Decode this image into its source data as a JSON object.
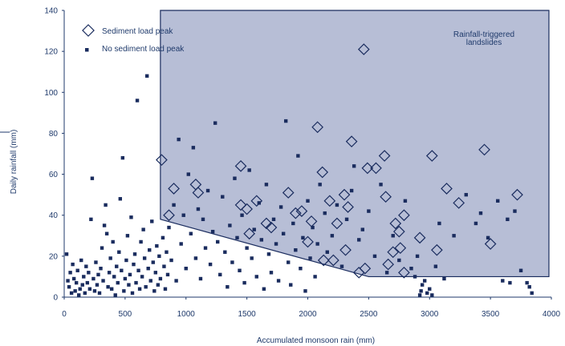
{
  "colors": {
    "axis": "#1f3a6b",
    "square": "#1a2c5e",
    "diamond": "#1a2c5e",
    "region_fill": "#b7bed6",
    "region_stroke": "#1a2c5e"
  },
  "chart_data": {
    "type": "scatter",
    "title": "",
    "xlabel": "Accumulated monsoon rain (mm)",
    "ylabel": "Daily rainfall (mm)",
    "xlim": [
      0,
      4000
    ],
    "ylim": [
      0,
      140
    ],
    "x_ticks": [
      "0",
      "500",
      "1000",
      "1500",
      "2000",
      "2500",
      "3000",
      "3500",
      "4000"
    ],
    "y_ticks": [
      "0",
      "20",
      "40",
      "60",
      "80",
      "100",
      "120",
      "140"
    ],
    "grid": false,
    "legend_position": "top-left",
    "region": {
      "label_lines": [
        "Rainfall-triggered",
        "landslides"
      ],
      "boundary": [
        [
          790,
          140
        ],
        [
          790,
          38
        ],
        [
          2500,
          10
        ],
        [
          3980,
          10
        ],
        [
          3980,
          140
        ]
      ]
    },
    "series": [
      {
        "name": "Sediment load peak",
        "marker": "diamond",
        "points": [
          [
            800,
            67
          ],
          [
            860,
            40
          ],
          [
            900,
            53
          ],
          [
            1080,
            55
          ],
          [
            1100,
            51
          ],
          [
            1450,
            64
          ],
          [
            1450,
            45
          ],
          [
            1500,
            43
          ],
          [
            1520,
            31
          ],
          [
            1580,
            47
          ],
          [
            1660,
            36
          ],
          [
            1700,
            34
          ],
          [
            1840,
            51
          ],
          [
            1900,
            41
          ],
          [
            1950,
            42
          ],
          [
            2000,
            27
          ],
          [
            2030,
            37
          ],
          [
            2080,
            83
          ],
          [
            2120,
            61
          ],
          [
            2130,
            18
          ],
          [
            2180,
            47
          ],
          [
            2210,
            18
          ],
          [
            2240,
            36
          ],
          [
            2300,
            50
          ],
          [
            2310,
            23
          ],
          [
            2330,
            44
          ],
          [
            2360,
            76
          ],
          [
            2420,
            12
          ],
          [
            2460,
            121
          ],
          [
            2470,
            14
          ],
          [
            2490,
            63
          ],
          [
            2560,
            63
          ],
          [
            2630,
            69
          ],
          [
            2640,
            49
          ],
          [
            2660,
            16
          ],
          [
            2700,
            22
          ],
          [
            2720,
            36
          ],
          [
            2750,
            32
          ],
          [
            2760,
            24
          ],
          [
            2790,
            40
          ],
          [
            2790,
            12
          ],
          [
            2920,
            29
          ],
          [
            3020,
            69
          ],
          [
            3060,
            23
          ],
          [
            3140,
            53
          ],
          [
            3240,
            46
          ],
          [
            3450,
            72
          ],
          [
            3500,
            26
          ],
          [
            3720,
            50
          ]
        ]
      },
      {
        "name": "No sediment load peak",
        "marker": "square",
        "points": [
          [
            20,
            21
          ],
          [
            30,
            8
          ],
          [
            40,
            5
          ],
          [
            50,
            12
          ],
          [
            60,
            2
          ],
          [
            70,
            16
          ],
          [
            80,
            9
          ],
          [
            90,
            3
          ],
          [
            100,
            7
          ],
          [
            110,
            13
          ],
          [
            120,
            1
          ],
          [
            130,
            4
          ],
          [
            140,
            18
          ],
          [
            150,
            6
          ],
          [
            160,
            10
          ],
          [
            170,
            2
          ],
          [
            180,
            15
          ],
          [
            190,
            7
          ],
          [
            200,
            12
          ],
          [
            210,
            4
          ],
          [
            220,
            38
          ],
          [
            230,
            58
          ],
          [
            240,
            9
          ],
          [
            250,
            3
          ],
          [
            260,
            17
          ],
          [
            270,
            6
          ],
          [
            280,
            11
          ],
          [
            290,
            2
          ],
          [
            300,
            14
          ],
          [
            310,
            24
          ],
          [
            320,
            8
          ],
          [
            330,
            35
          ],
          [
            340,
            45
          ],
          [
            350,
            31
          ],
          [
            360,
            5
          ],
          [
            370,
            12
          ],
          [
            380,
            19
          ],
          [
            390,
            4
          ],
          [
            400,
            27
          ],
          [
            410,
            10
          ],
          [
            420,
            1
          ],
          [
            430,
            15
          ],
          [
            440,
            7
          ],
          [
            450,
            22
          ],
          [
            460,
            48
          ],
          [
            470,
            13
          ],
          [
            480,
            68
          ],
          [
            490,
            3
          ],
          [
            500,
            9
          ],
          [
            510,
            18
          ],
          [
            520,
            30
          ],
          [
            530,
            6
          ],
          [
            540,
            11
          ],
          [
            550,
            39
          ],
          [
            560,
            2
          ],
          [
            570,
            16
          ],
          [
            580,
            21
          ],
          [
            590,
            7
          ],
          [
            600,
            96
          ],
          [
            610,
            13
          ],
          [
            620,
            4
          ],
          [
            630,
            27
          ],
          [
            640,
            10
          ],
          [
            650,
            33
          ],
          [
            660,
            19
          ],
          [
            670,
            5
          ],
          [
            680,
            108
          ],
          [
            690,
            14
          ],
          [
            700,
            23
          ],
          [
            710,
            8
          ],
          [
            720,
            37
          ],
          [
            730,
            17
          ],
          [
            740,
            3
          ],
          [
            750,
            12
          ],
          [
            760,
            25
          ],
          [
            770,
            6
          ],
          [
            780,
            20
          ],
          [
            790,
            9
          ],
          [
            810,
            29
          ],
          [
            820,
            15
          ],
          [
            830,
            4
          ],
          [
            840,
            22
          ],
          [
            850,
            11
          ],
          [
            860,
            34
          ],
          [
            880,
            18
          ],
          [
            900,
            45
          ],
          [
            920,
            8
          ],
          [
            940,
            77
          ],
          [
            960,
            26
          ],
          [
            980,
            40
          ],
          [
            1000,
            14
          ],
          [
            1020,
            60
          ],
          [
            1040,
            31
          ],
          [
            1060,
            73
          ],
          [
            1080,
            19
          ],
          [
            1100,
            43
          ],
          [
            1120,
            9
          ],
          [
            1140,
            38
          ],
          [
            1160,
            24
          ],
          [
            1180,
            52
          ],
          [
            1200,
            16
          ],
          [
            1220,
            32
          ],
          [
            1240,
            85
          ],
          [
            1260,
            27
          ],
          [
            1280,
            11
          ],
          [
            1300,
            49
          ],
          [
            1320,
            22
          ],
          [
            1340,
            5
          ],
          [
            1360,
            35
          ],
          [
            1380,
            17
          ],
          [
            1400,
            58
          ],
          [
            1420,
            29
          ],
          [
            1440,
            13
          ],
          [
            1460,
            40
          ],
          [
            1480,
            7
          ],
          [
            1500,
            24
          ],
          [
            1520,
            62
          ],
          [
            1540,
            19
          ],
          [
            1560,
            33
          ],
          [
            1580,
            10
          ],
          [
            1600,
            46
          ],
          [
            1620,
            28
          ],
          [
            1640,
            4
          ],
          [
            1660,
            55
          ],
          [
            1680,
            21
          ],
          [
            1700,
            12
          ],
          [
            1720,
            38
          ],
          [
            1740,
            26
          ],
          [
            1760,
            8
          ],
          [
            1780,
            44
          ],
          [
            1800,
            31
          ],
          [
            1820,
            86
          ],
          [
            1840,
            17
          ],
          [
            1860,
            6
          ],
          [
            1880,
            36
          ],
          [
            1900,
            23
          ],
          [
            1920,
            69
          ],
          [
            1940,
            14
          ],
          [
            1960,
            29
          ],
          [
            1980,
            3
          ],
          [
            2000,
            47
          ],
          [
            2020,
            19
          ],
          [
            2040,
            34
          ],
          [
            2060,
            10
          ],
          [
            2080,
            26
          ],
          [
            2100,
            55
          ],
          [
            2140,
            41
          ],
          [
            2160,
            22
          ],
          [
            2200,
            30
          ],
          [
            2240,
            45
          ],
          [
            2280,
            15
          ],
          [
            2320,
            38
          ],
          [
            2360,
            52
          ],
          [
            2380,
            64
          ],
          [
            2420,
            28
          ],
          [
            2450,
            33
          ],
          [
            2500,
            42
          ],
          [
            2550,
            20
          ],
          [
            2600,
            55
          ],
          [
            2650,
            12
          ],
          [
            2700,
            30
          ],
          [
            2750,
            18
          ],
          [
            2800,
            47
          ],
          [
            2850,
            14
          ],
          [
            2880,
            10
          ],
          [
            2900,
            20
          ],
          [
            2920,
            1
          ],
          [
            2930,
            3
          ],
          [
            2940,
            6
          ],
          [
            2960,
            8
          ],
          [
            2980,
            2
          ],
          [
            3000,
            4
          ],
          [
            3020,
            1
          ],
          [
            3050,
            15
          ],
          [
            3080,
            36
          ],
          [
            3120,
            9
          ],
          [
            3200,
            30
          ],
          [
            3300,
            50
          ],
          [
            3380,
            36
          ],
          [
            3420,
            41
          ],
          [
            3480,
            29
          ],
          [
            3560,
            47
          ],
          [
            3600,
            8
          ],
          [
            3640,
            38
          ],
          [
            3660,
            7
          ],
          [
            3700,
            42
          ],
          [
            3750,
            13
          ],
          [
            3800,
            7
          ],
          [
            3820,
            5
          ],
          [
            3840,
            2
          ]
        ]
      }
    ]
  }
}
